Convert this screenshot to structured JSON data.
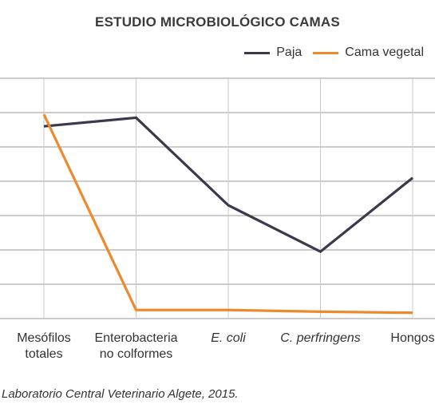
{
  "chart_data": {
    "type": "line",
    "title": "ESTUDIO MICROBIOLÓGICO CAMAS",
    "categories": [
      {
        "lines": [
          "Mesófilos",
          "totales"
        ],
        "italic": false
      },
      {
        "lines": [
          "Enterobacteria",
          "no colformes"
        ],
        "italic": false
      },
      {
        "lines": [
          "E. coli"
        ],
        "italic": true
      },
      {
        "lines": [
          "C. perfringens"
        ],
        "italic": true
      },
      {
        "lines": [
          "Hongos"
        ],
        "italic": false
      }
    ],
    "series": [
      {
        "name": "Paja",
        "color": "#3a3a4c",
        "values": [
          5.4,
          5.65,
          3.1,
          1.75,
          3.9
        ]
      },
      {
        "name": "Cama vegetal",
        "color": "#ee8a2e",
        "values": [
          5.75,
          0.05,
          0.05,
          0.0,
          -0.03
        ]
      }
    ],
    "ylim": [
      -0.2,
      6.8
    ],
    "grid": true,
    "legend_position": "top-right"
  },
  "source": "Laboratorio Central Veterinario Algete, 2015."
}
